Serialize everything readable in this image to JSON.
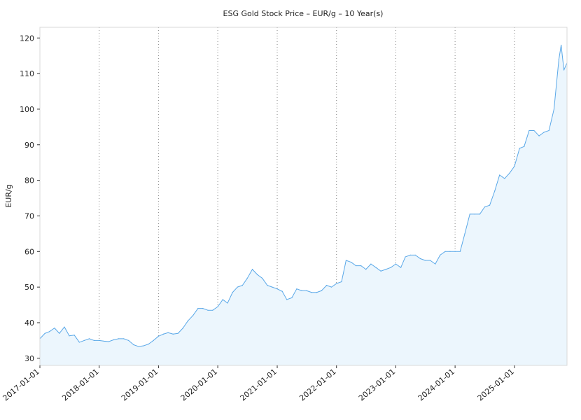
{
  "chart_data": {
    "type": "area",
    "title": "ESG Gold Stock Price – EUR/g – 10 Year(s)",
    "xlabel": "",
    "ylabel": "EUR/g",
    "xlim": [
      "2017-01-01",
      "2025-11-20"
    ],
    "ylim": [
      28,
      123
    ],
    "yticks": [
      30,
      40,
      50,
      60,
      70,
      80,
      90,
      100,
      110,
      120
    ],
    "xticks": [
      "2017-01-01",
      "2018-01-01",
      "2019-01-01",
      "2020-01-01",
      "2021-01-01",
      "2022-01-01",
      "2023-01-01",
      "2024-01-01",
      "2025-01-01"
    ],
    "grid": "vertical dotted at year ticks",
    "legend": "none",
    "series": [
      {
        "color": "#5aa8e8",
        "fill": "#ecf6fd",
        "points": [
          [
            "2017-01-01",
            35.5
          ],
          [
            "2017-02-01",
            37.0
          ],
          [
            "2017-03-01",
            37.5
          ],
          [
            "2017-04-01",
            38.5
          ],
          [
            "2017-05-01",
            37.0
          ],
          [
            "2017-06-01",
            38.8
          ],
          [
            "2017-07-01",
            36.3
          ],
          [
            "2017-08-01",
            36.5
          ],
          [
            "2017-09-01",
            34.5
          ],
          [
            "2017-10-01",
            35.0
          ],
          [
            "2017-11-01",
            35.5
          ],
          [
            "2017-12-01",
            35.0
          ],
          [
            "2018-01-01",
            35.0
          ],
          [
            "2018-02-01",
            34.8
          ],
          [
            "2018-03-01",
            34.7
          ],
          [
            "2018-04-01",
            35.2
          ],
          [
            "2018-05-01",
            35.5
          ],
          [
            "2018-06-01",
            35.5
          ],
          [
            "2018-07-01",
            35.0
          ],
          [
            "2018-08-01",
            33.8
          ],
          [
            "2018-09-01",
            33.3
          ],
          [
            "2018-10-01",
            33.5
          ],
          [
            "2018-11-01",
            34.0
          ],
          [
            "2018-12-01",
            35.0
          ],
          [
            "2019-01-01",
            36.2
          ],
          [
            "2019-02-01",
            36.8
          ],
          [
            "2019-03-01",
            37.2
          ],
          [
            "2019-04-01",
            36.8
          ],
          [
            "2019-05-01",
            37.0
          ],
          [
            "2019-06-01",
            38.5
          ],
          [
            "2019-07-01",
            40.5
          ],
          [
            "2019-08-01",
            42.0
          ],
          [
            "2019-09-01",
            44.0
          ],
          [
            "2019-10-01",
            44.0
          ],
          [
            "2019-11-01",
            43.5
          ],
          [
            "2019-12-01",
            43.5
          ],
          [
            "2020-01-01",
            44.5
          ],
          [
            "2020-02-01",
            46.5
          ],
          [
            "2020-03-01",
            45.5
          ],
          [
            "2020-04-01",
            48.5
          ],
          [
            "2020-05-01",
            50.0
          ],
          [
            "2020-06-01",
            50.5
          ],
          [
            "2020-07-01",
            52.5
          ],
          [
            "2020-08-01",
            55.0
          ],
          [
            "2020-09-01",
            53.5
          ],
          [
            "2020-10-01",
            52.5
          ],
          [
            "2020-11-01",
            50.5
          ],
          [
            "2020-12-01",
            50.0
          ],
          [
            "2021-01-01",
            49.5
          ],
          [
            "2021-02-01",
            48.8
          ],
          [
            "2021-03-01",
            46.5
          ],
          [
            "2021-04-01",
            47.0
          ],
          [
            "2021-05-01",
            49.5
          ],
          [
            "2021-06-01",
            49.0
          ],
          [
            "2021-07-01",
            49.0
          ],
          [
            "2021-08-01",
            48.5
          ],
          [
            "2021-09-01",
            48.5
          ],
          [
            "2021-10-01",
            49.0
          ],
          [
            "2021-11-01",
            50.5
          ],
          [
            "2021-12-01",
            50.0
          ],
          [
            "2022-01-01",
            51.0
          ],
          [
            "2022-02-01",
            51.5
          ],
          [
            "2022-03-01",
            57.5
          ],
          [
            "2022-04-01",
            57.0
          ],
          [
            "2022-05-01",
            56.0
          ],
          [
            "2022-06-01",
            56.0
          ],
          [
            "2022-07-01",
            55.0
          ],
          [
            "2022-08-01",
            56.5
          ],
          [
            "2022-09-01",
            55.5
          ],
          [
            "2022-10-01",
            54.5
          ],
          [
            "2022-11-01",
            55.0
          ],
          [
            "2022-12-01",
            55.5
          ],
          [
            "2023-01-01",
            56.5
          ],
          [
            "2023-02-01",
            55.5
          ],
          [
            "2023-03-01",
            58.5
          ],
          [
            "2023-04-01",
            59.0
          ],
          [
            "2023-05-01",
            59.0
          ],
          [
            "2023-06-01",
            58.0
          ],
          [
            "2023-07-01",
            57.5
          ],
          [
            "2023-08-01",
            57.5
          ],
          [
            "2023-09-01",
            56.5
          ],
          [
            "2023-10-01",
            59.0
          ],
          [
            "2023-11-01",
            60.0
          ],
          [
            "2023-12-01",
            60.0
          ],
          [
            "2024-01-01",
            60.0
          ],
          [
            "2024-02-01",
            60.0
          ],
          [
            "2024-03-01",
            65.0
          ],
          [
            "2024-04-01",
            70.5
          ],
          [
            "2024-05-01",
            70.5
          ],
          [
            "2024-06-01",
            70.5
          ],
          [
            "2024-07-01",
            72.5
          ],
          [
            "2024-08-01",
            73.0
          ],
          [
            "2024-09-01",
            77.0
          ],
          [
            "2024-10-01",
            81.5
          ],
          [
            "2024-11-01",
            80.5
          ],
          [
            "2024-12-01",
            82.0
          ],
          [
            "2025-01-01",
            84.0
          ],
          [
            "2025-02-01",
            89.0
          ],
          [
            "2025-03-01",
            89.5
          ],
          [
            "2025-04-01",
            94.0
          ],
          [
            "2025-05-01",
            94.0
          ],
          [
            "2025-06-01",
            92.5
          ],
          [
            "2025-07-01",
            93.5
          ],
          [
            "2025-08-01",
            94.0
          ],
          [
            "2025-09-01",
            100.0
          ],
          [
            "2025-10-01",
            114.0
          ],
          [
            "2025-10-15",
            118.0
          ],
          [
            "2025-11-01",
            111.0
          ],
          [
            "2025-11-20",
            113.0
          ]
        ]
      }
    ]
  }
}
